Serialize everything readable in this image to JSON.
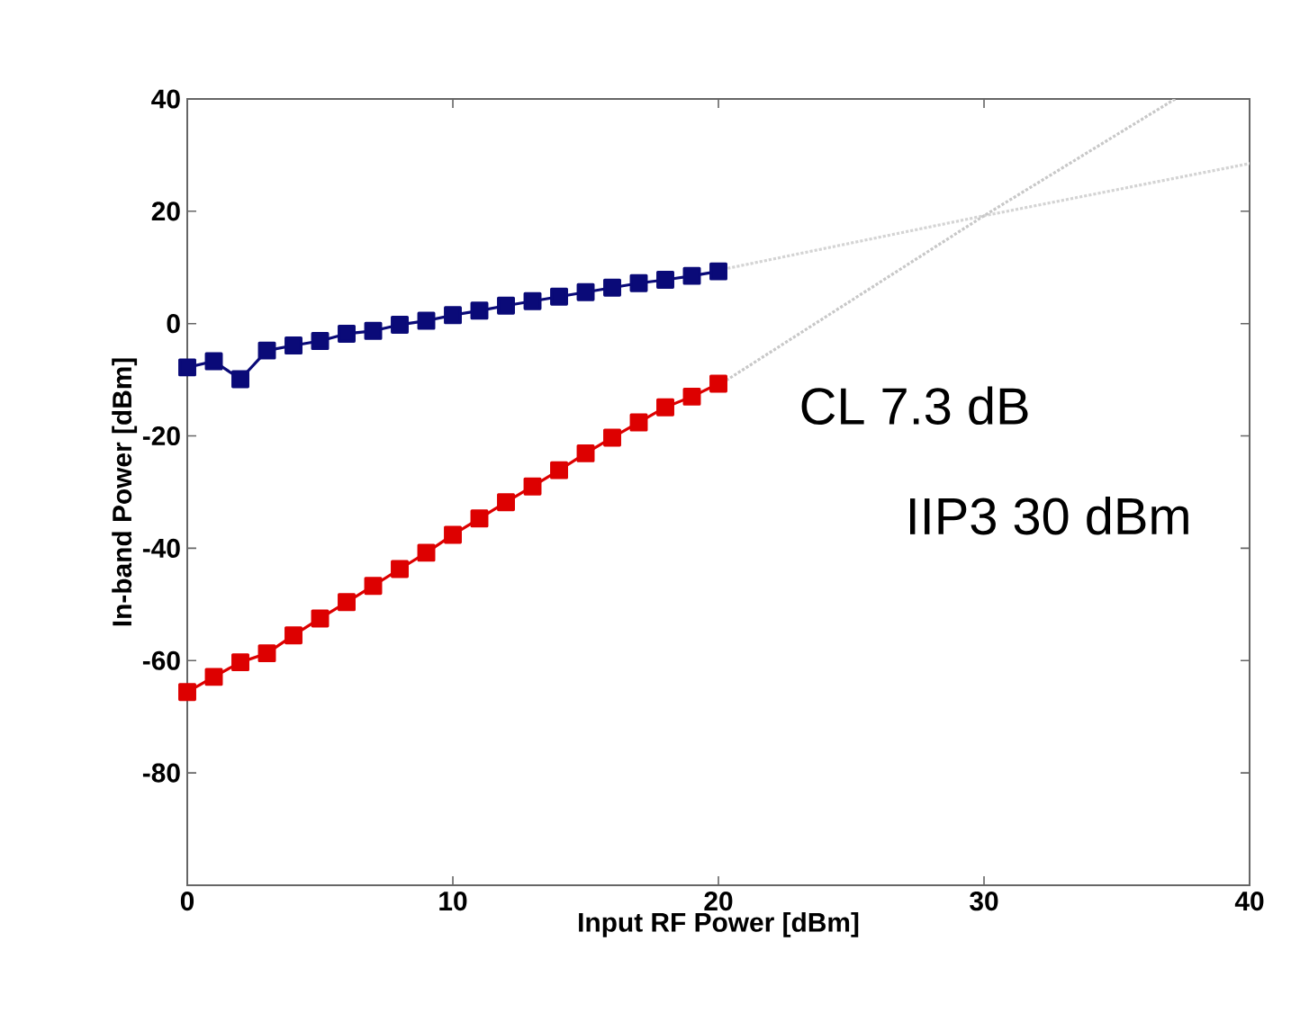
{
  "chart_data": {
    "type": "line",
    "xlabel": "Input RF Power [dBm]",
    "ylabel": "In-band Power [dBm]",
    "x": [
      0,
      1,
      2,
      3,
      4,
      5,
      6,
      7,
      8,
      9,
      10,
      11,
      12,
      13,
      14,
      15,
      16,
      17,
      18,
      19,
      20
    ],
    "series": [
      {
        "color": "#0a0a78",
        "values": [
          -7.8,
          -6.7,
          -9.9,
          -4.8,
          -3.9,
          -3.1,
          -1.8,
          -1.3,
          -0.2,
          0.5,
          1.5,
          2.3,
          3.2,
          4.0,
          4.8,
          5.6,
          6.4,
          7.2,
          7.8,
          8.5,
          9.3
        ]
      },
      {
        "color": "#dd0000",
        "values": [
          -65.6,
          -62.9,
          -60.3,
          -58.7,
          -55.5,
          -52.5,
          -49.6,
          -46.7,
          -43.7,
          -40.8,
          -37.6,
          -34.7,
          -31.8,
          -29.0,
          -26.1,
          -23.1,
          -20.3,
          -17.6,
          -14.9,
          -13.0,
          -10.7
        ]
      },
      {
        "color": "#d4d4d4",
        "x": [
          20,
          30,
          40
        ],
        "values": [
          9.5,
          19.2,
          28.5
        ],
        "marker": "none",
        "line_style": "dotted"
      },
      {
        "color": "#c8c8c8",
        "x": [
          20,
          30,
          37.2
        ],
        "values": [
          -11,
          19.2,
          40
        ],
        "marker": "none",
        "line_style": "dotted"
      }
    ],
    "xlim": [
      0,
      40
    ],
    "ylim": [
      -100,
      40
    ],
    "xticks": [
      0,
      10,
      20,
      30,
      40
    ],
    "yticks": [
      -80,
      -60,
      -40,
      -20,
      0,
      20,
      40
    ],
    "marker": "square",
    "line_style": "solid",
    "grid": false,
    "legend": false,
    "annotations": [
      "CL 7.3 dB",
      "IIP3 30 dBm"
    ]
  }
}
